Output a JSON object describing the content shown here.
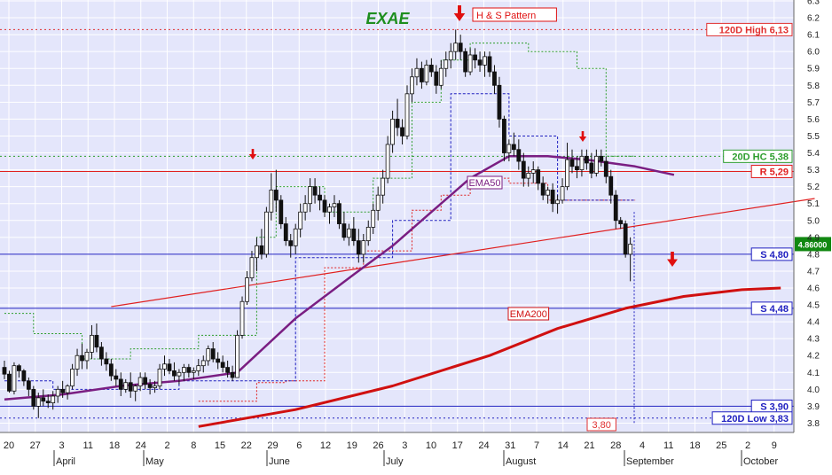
{
  "colors": {
    "background": "#E4E6FB",
    "grid": "#ffffff",
    "up_body": "#ffffff",
    "down_body": "#111111",
    "ema50": "#7A1E82",
    "ema200": "#D01010",
    "support": "#2020C0",
    "resistance": "#E02020",
    "high_low": "#E03030",
    "hc20": "#2E9E2E",
    "arrow": "#E01010",
    "ticker": "#1E8E1E"
  },
  "chart_data": {
    "type": "candlestick",
    "ticker": "EXAE",
    "pattern_label": "H & S Pattern",
    "last_price_label": "4.86000",
    "ylim": [
      3.75,
      6.3
    ],
    "y_ticks": [
      3.8,
      3.9,
      4.0,
      4.1,
      4.2,
      4.3,
      4.4,
      4.5,
      4.6,
      4.7,
      4.8,
      4.9,
      5.0,
      5.1,
      5.2,
      5.3,
      5.4,
      5.5,
      5.6,
      5.7,
      5.8,
      5.9,
      6.0,
      6.1,
      6.2,
      6.3
    ],
    "x_ticks": [
      "20",
      "27",
      "3",
      "11",
      "18",
      "24",
      "2",
      "8",
      "15",
      "22",
      "29",
      "6",
      "12",
      "19",
      "26",
      "3",
      "10",
      "17",
      "24",
      "31",
      "7",
      "14",
      "21",
      "28",
      "4",
      "11",
      "18",
      "25",
      "2",
      "9"
    ],
    "month_labels": [
      "April",
      "May",
      "June",
      "July",
      "August",
      "September",
      "October"
    ],
    "levels": [
      {
        "name": "120D High",
        "label": "120D High 6,13",
        "value": 6.13,
        "style": "dotted-red"
      },
      {
        "name": "20D HC",
        "label": "20D HC 5,38",
        "value": 5.38,
        "style": "dotted-green"
      },
      {
        "name": "R",
        "label": "R 5,29",
        "value": 5.29,
        "style": "solid-red"
      },
      {
        "name": "S",
        "label": "S 4,80",
        "value": 4.8,
        "style": "solid-blue"
      },
      {
        "name": "S",
        "label": "S 4,48",
        "value": 4.48,
        "style": "solid-blue"
      },
      {
        "name": "S",
        "label": "S 3,90",
        "value": 3.9,
        "style": "solid-blue"
      },
      {
        "name": "120D Low",
        "label": "120D Low 3,83",
        "value": 3.83,
        "style": "dotted-blue"
      }
    ],
    "annotations": [
      {
        "label": "EMA50",
        "kind": "series-tag"
      },
      {
        "label": "EMA200",
        "kind": "series-tag"
      },
      {
        "label": "3,80",
        "kind": "value-tag"
      }
    ],
    "trendline": {
      "from": [
        22,
        4.49
      ],
      "to": [
        167,
        5.13
      ]
    },
    "candles": [
      [
        4.13,
        4.17,
        4.06,
        4.09
      ],
      [
        4.09,
        4.11,
        3.98,
        3.99
      ],
      [
        3.99,
        4.16,
        3.97,
        4.14
      ],
      [
        4.14,
        4.15,
        4.07,
        4.11
      ],
      [
        4.11,
        4.12,
        4.02,
        4.05
      ],
      [
        4.05,
        4.07,
        3.96,
        4.0
      ],
      [
        4.0,
        4.02,
        3.88,
        3.9
      ],
      [
        3.9,
        3.98,
        3.83,
        3.95
      ],
      [
        3.95,
        4.0,
        3.9,
        3.93
      ],
      [
        3.93,
        3.97,
        3.89,
        3.92
      ],
      [
        3.92,
        3.99,
        3.88,
        3.96
      ],
      [
        3.96,
        4.02,
        3.92,
        4.0
      ],
      [
        4.0,
        4.05,
        3.95,
        3.98
      ],
      [
        3.98,
        4.03,
        3.94,
        4.02
      ],
      [
        4.02,
        4.15,
        4.0,
        4.12
      ],
      [
        4.12,
        4.24,
        4.08,
        4.2
      ],
      [
        4.2,
        4.27,
        4.12,
        4.17
      ],
      [
        4.17,
        4.24,
        4.12,
        4.22
      ],
      [
        4.22,
        4.38,
        4.18,
        4.32
      ],
      [
        4.32,
        4.39,
        4.22,
        4.25
      ],
      [
        4.25,
        4.28,
        4.14,
        4.18
      ],
      [
        4.18,
        4.22,
        4.11,
        4.15
      ],
      [
        4.15,
        4.18,
        4.05,
        4.08
      ],
      [
        4.08,
        4.12,
        4.02,
        4.06
      ],
      [
        4.06,
        4.1,
        3.96,
        4.0
      ],
      [
        4.0,
        4.06,
        3.98,
        4.04
      ],
      [
        4.04,
        4.1,
        3.95,
        3.99
      ],
      [
        3.99,
        4.03,
        3.93,
        4.02
      ],
      [
        4.02,
        4.1,
        3.99,
        4.07
      ],
      [
        4.07,
        4.1,
        4.0,
        4.03
      ],
      [
        4.03,
        4.06,
        3.97,
        4.01
      ],
      [
        4.01,
        4.05,
        3.98,
        4.02
      ],
      [
        4.02,
        4.15,
        4.0,
        4.12
      ],
      [
        4.12,
        4.2,
        4.08,
        4.15
      ],
      [
        4.15,
        4.18,
        4.09,
        4.11
      ],
      [
        4.11,
        4.16,
        4.05,
        4.08
      ],
      [
        4.08,
        4.12,
        4.03,
        4.1
      ],
      [
        4.1,
        4.15,
        4.05,
        4.13
      ],
      [
        4.13,
        4.15,
        4.07,
        4.1
      ],
      [
        4.1,
        4.13,
        4.06,
        4.11
      ],
      [
        4.11,
        4.18,
        4.08,
        4.14
      ],
      [
        4.14,
        4.2,
        4.1,
        4.17
      ],
      [
        4.17,
        4.26,
        4.14,
        4.24
      ],
      [
        4.24,
        4.28,
        4.16,
        4.18
      ],
      [
        4.18,
        4.22,
        4.12,
        4.16
      ],
      [
        4.16,
        4.2,
        4.1,
        4.13
      ],
      [
        4.13,
        4.17,
        4.07,
        4.1
      ],
      [
        4.1,
        4.14,
        4.05,
        4.07
      ],
      [
        4.07,
        4.35,
        4.07,
        4.32
      ],
      [
        4.32,
        4.55,
        4.3,
        4.52
      ],
      [
        4.52,
        4.7,
        4.5,
        4.66
      ],
      [
        4.66,
        4.82,
        4.64,
        4.78
      ],
      [
        4.78,
        4.9,
        4.7,
        4.85
      ],
      [
        4.85,
        4.95,
        4.77,
        4.8
      ],
      [
        4.8,
        5.08,
        4.78,
        5.05
      ],
      [
        5.05,
        5.28,
        5.0,
        5.18
      ],
      [
        5.18,
        5.3,
        5.05,
        5.12
      ],
      [
        5.12,
        5.15,
        4.95,
        4.98
      ],
      [
        4.98,
        5.02,
        4.85,
        4.88
      ],
      [
        4.88,
        4.92,
        4.78,
        4.85
      ],
      [
        4.85,
        4.98,
        4.8,
        4.95
      ],
      [
        4.95,
        5.1,
        4.9,
        5.05
      ],
      [
        5.05,
        5.15,
        5.0,
        5.1
      ],
      [
        5.1,
        5.25,
        5.05,
        5.2
      ],
      [
        5.2,
        5.25,
        5.1,
        5.15
      ],
      [
        5.15,
        5.2,
        5.06,
        5.12
      ],
      [
        5.12,
        5.15,
        5.02,
        5.05
      ],
      [
        5.05,
        5.1,
        4.98,
        5.08
      ],
      [
        5.08,
        5.15,
        5.02,
        5.1
      ],
      [
        5.1,
        5.12,
        4.95,
        4.98
      ],
      [
        4.98,
        5.05,
        4.88,
        4.9
      ],
      [
        4.9,
        4.98,
        4.85,
        4.95
      ],
      [
        4.95,
        5.02,
        4.85,
        4.88
      ],
      [
        4.88,
        4.95,
        4.75,
        4.8
      ],
      [
        4.8,
        4.92,
        4.75,
        4.88
      ],
      [
        4.88,
        5.0,
        4.85,
        4.96
      ],
      [
        4.96,
        5.1,
        4.92,
        5.06
      ],
      [
        5.06,
        5.2,
        5.0,
        5.15
      ],
      [
        5.15,
        5.3,
        5.1,
        5.25
      ],
      [
        5.25,
        5.5,
        5.22,
        5.45
      ],
      [
        5.45,
        5.65,
        5.4,
        5.6
      ],
      [
        5.6,
        5.72,
        5.5,
        5.55
      ],
      [
        5.55,
        5.6,
        5.45,
        5.5
      ],
      [
        5.5,
        5.8,
        5.48,
        5.75
      ],
      [
        5.75,
        5.9,
        5.7,
        5.85
      ],
      [
        5.85,
        5.96,
        5.8,
        5.9
      ],
      [
        5.9,
        5.94,
        5.78,
        5.82
      ],
      [
        5.82,
        5.95,
        5.8,
        5.92
      ],
      [
        5.92,
        5.96,
        5.85,
        5.88
      ],
      [
        5.88,
        5.92,
        5.75,
        5.8
      ],
      [
        5.8,
        5.95,
        5.78,
        5.9
      ],
      [
        5.9,
        6.0,
        5.85,
        5.95
      ],
      [
        5.95,
        6.05,
        5.9,
        6.0
      ],
      [
        6.0,
        6.13,
        5.95,
        6.05
      ],
      [
        6.05,
        6.1,
        5.95,
        6.0
      ],
      [
        6.0,
        6.02,
        5.85,
        5.88
      ],
      [
        5.88,
        6.02,
        5.86,
        5.98
      ],
      [
        5.98,
        6.02,
        5.9,
        5.95
      ],
      [
        5.95,
        6.0,
        5.88,
        5.92
      ],
      [
        5.92,
        6.0,
        5.85,
        5.97
      ],
      [
        5.97,
        6.0,
        5.85,
        5.88
      ],
      [
        5.88,
        5.92,
        5.75,
        5.8
      ],
      [
        5.8,
        5.85,
        5.55,
        5.6
      ],
      [
        5.6,
        5.62,
        5.35,
        5.4
      ],
      [
        5.4,
        5.48,
        5.35,
        5.45
      ],
      [
        5.45,
        5.52,
        5.38,
        5.42
      ],
      [
        5.42,
        5.48,
        5.3,
        5.35
      ],
      [
        5.35,
        5.4,
        5.2,
        5.25
      ],
      [
        5.25,
        5.32,
        5.2,
        5.28
      ],
      [
        5.28,
        5.35,
        5.22,
        5.3
      ],
      [
        5.3,
        5.32,
        5.18,
        5.22
      ],
      [
        5.22,
        5.26,
        5.12,
        5.15
      ],
      [
        5.15,
        5.2,
        5.1,
        5.18
      ],
      [
        5.18,
        5.22,
        5.05,
        5.1
      ],
      [
        5.1,
        5.15,
        5.04,
        5.12
      ],
      [
        5.12,
        5.25,
        5.1,
        5.2
      ],
      [
        5.2,
        5.46,
        5.18,
        5.36
      ],
      [
        5.36,
        5.42,
        5.28,
        5.32
      ],
      [
        5.32,
        5.38,
        5.25,
        5.3
      ],
      [
        5.3,
        5.42,
        5.26,
        5.38
      ],
      [
        5.38,
        5.42,
        5.3,
        5.34
      ],
      [
        5.34,
        5.4,
        5.25,
        5.28
      ],
      [
        5.28,
        5.42,
        5.26,
        5.38
      ],
      [
        5.38,
        5.42,
        5.32,
        5.35
      ],
      [
        5.35,
        5.38,
        5.22,
        5.26
      ],
      [
        5.26,
        5.3,
        5.1,
        5.15
      ],
      [
        5.15,
        5.18,
        4.95,
        5.0
      ],
      [
        5.0,
        5.02,
        4.95,
        4.98
      ],
      [
        4.98,
        5.0,
        4.78,
        4.8
      ],
      [
        4.8,
        4.9,
        4.64,
        4.86
      ]
    ],
    "ema50": [
      [
        0,
        3.94
      ],
      [
        12,
        3.97
      ],
      [
        24,
        4.02
      ],
      [
        36,
        4.05
      ],
      [
        48,
        4.1
      ],
      [
        60,
        4.42
      ],
      [
        72,
        4.68
      ],
      [
        80,
        4.85
      ],
      [
        88,
        5.05
      ],
      [
        96,
        5.25
      ],
      [
        104,
        5.38
      ],
      [
        112,
        5.38
      ],
      [
        120,
        5.36
      ],
      [
        130,
        5.32
      ],
      [
        138,
        5.27
      ]
    ],
    "ema200": [
      [
        40,
        3.78
      ],
      [
        60,
        3.88
      ],
      [
        80,
        4.02
      ],
      [
        100,
        4.2
      ],
      [
        114,
        4.36
      ],
      [
        128,
        4.48
      ],
      [
        140,
        4.55
      ],
      [
        152,
        4.59
      ],
      [
        160,
        4.6
      ]
    ],
    "hc_step": [
      [
        0,
        4.45
      ],
      [
        6,
        4.45
      ],
      [
        6,
        4.33
      ],
      [
        16,
        4.33
      ],
      [
        16,
        4.18
      ],
      [
        26,
        4.18
      ],
      [
        26,
        4.24
      ],
      [
        40,
        4.24
      ],
      [
        40,
        4.32
      ],
      [
        52,
        4.32
      ],
      [
        52,
        4.9
      ],
      [
        56,
        4.9
      ],
      [
        56,
        5.2
      ],
      [
        66,
        5.2
      ],
      [
        66,
        5.05
      ],
      [
        76,
        5.05
      ],
      [
        76,
        5.25
      ],
      [
        84,
        5.25
      ],
      [
        84,
        5.7
      ],
      [
        90,
        5.7
      ],
      [
        90,
        5.95
      ],
      [
        96,
        5.95
      ],
      [
        96,
        6.05
      ],
      [
        108,
        6.05
      ],
      [
        108,
        6.0
      ],
      [
        118,
        6.0
      ],
      [
        118,
        5.9
      ],
      [
        124,
        5.9
      ],
      [
        124,
        5.38
      ],
      [
        130,
        5.38
      ]
    ],
    "red_step": [
      [
        40,
        3.93
      ],
      [
        52,
        3.93
      ],
      [
        52,
        4.04
      ],
      [
        58,
        4.04
      ],
      [
        58,
        4.05
      ],
      [
        66,
        4.05
      ],
      [
        66,
        4.72
      ],
      [
        74,
        4.72
      ],
      [
        74,
        4.82
      ],
      [
        84,
        4.82
      ],
      [
        84,
        5.06
      ],
      [
        90,
        5.06
      ],
      [
        90,
        5.15
      ],
      [
        96,
        5.15
      ],
      [
        96,
        5.25
      ],
      [
        104,
        5.25
      ],
      [
        104,
        5.22
      ],
      [
        112,
        5.22
      ],
      [
        112,
        5.12
      ],
      [
        130,
        5.12
      ]
    ],
    "blue_step": [
      [
        0,
        4.05
      ],
      [
        10,
        4.05
      ],
      [
        10,
        4.0
      ],
      [
        36,
        4.0
      ],
      [
        36,
        4.05
      ],
      [
        60,
        4.05
      ],
      [
        60,
        4.78
      ],
      [
        80,
        4.78
      ],
      [
        80,
        5.0
      ],
      [
        92,
        5.0
      ],
      [
        92,
        5.75
      ],
      [
        104,
        5.75
      ],
      [
        104,
        5.5
      ],
      [
        114,
        5.5
      ],
      [
        114,
        5.12
      ],
      [
        130,
        5.12
      ]
    ]
  }
}
